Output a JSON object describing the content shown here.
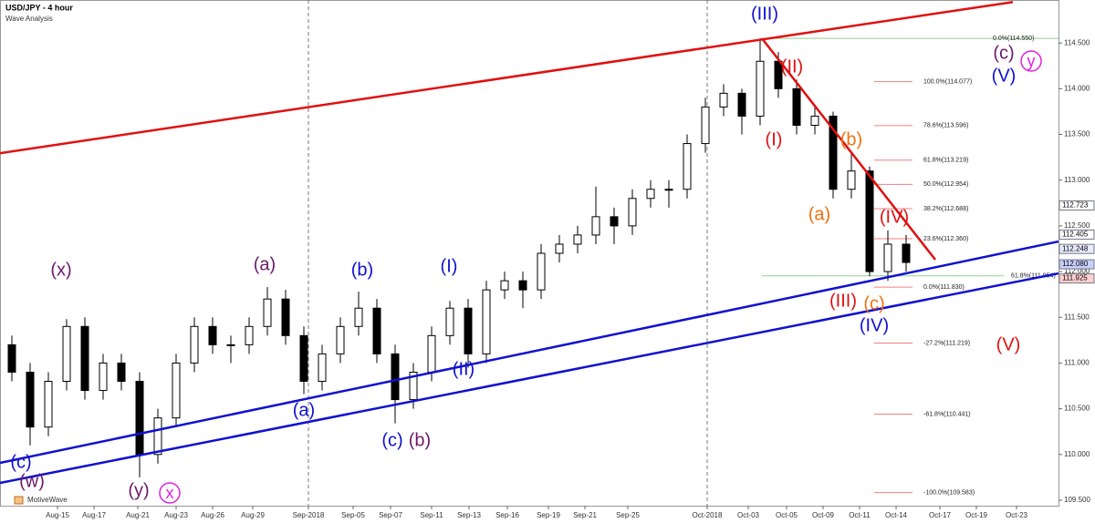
{
  "chart_data": {
    "type": "candlestick",
    "title": "USD/JPY - 4 hour",
    "subtitle": "Wave Analysis",
    "watermark": "MotiveWave",
    "x": [
      -2.5,
      -1.5,
      -0.5,
      0.5,
      1.5,
      2.5,
      3.5,
      4.5,
      5.5,
      6.5,
      7.5,
      8.5,
      9.5,
      10.5,
      11.5,
      12.5,
      13.5,
      14.5,
      15.5,
      16.5,
      17.5,
      18.5,
      19.5,
      20.5,
      21.5,
      22.5,
      23.5,
      24.5,
      25.5,
      26.5,
      27.5,
      28.5,
      29.5,
      30.5,
      31.5,
      32.5,
      33.5,
      34.5,
      35.5,
      36.5,
      37.5,
      38.5,
      39.5,
      40.5,
      41.5,
      42.5,
      43.5,
      44.5,
      45.5,
      46.5
    ],
    "open": [
      111.2,
      110.9,
      110.3,
      110.8,
      111.4,
      110.7,
      111.0,
      110.8,
      110.0,
      110.4,
      111.0,
      111.4,
      111.2,
      111.2,
      111.4,
      111.7,
      111.3,
      110.8,
      111.1,
      111.4,
      111.6,
      111.1,
      110.6,
      110.9,
      111.3,
      111.6,
      111.1,
      111.8,
      111.9,
      111.8,
      112.2,
      112.3,
      112.4,
      112.6,
      112.5,
      112.8,
      112.9,
      112.9,
      113.4,
      113.8,
      113.95,
      113.7,
      114.3,
      114.0,
      113.6,
      113.7,
      112.9,
      113.1,
      112.0,
      112.3
    ],
    "high": [
      111.3,
      111.0,
      110.9,
      111.48,
      111.5,
      111.1,
      111.1,
      110.9,
      110.5,
      111.1,
      111.5,
      111.5,
      111.3,
      111.5,
      111.83,
      111.8,
      111.4,
      111.2,
      111.5,
      111.78,
      111.7,
      111.2,
      111.0,
      111.4,
      111.68,
      111.7,
      111.9,
      112.0,
      112.0,
      112.3,
      112.4,
      112.5,
      112.93,
      112.7,
      112.9,
      113.0,
      113.0,
      113.5,
      113.9,
      114.05,
      114.0,
      114.55,
      114.4,
      114.1,
      113.8,
      113.75,
      113.3,
      113.15,
      112.45,
      112.4
    ],
    "low": [
      110.8,
      110.1,
      110.2,
      110.7,
      110.6,
      110.6,
      110.7,
      109.75,
      109.9,
      110.3,
      110.9,
      111.1,
      111.0,
      111.1,
      111.3,
      111.2,
      110.66,
      110.7,
      111.0,
      111.3,
      111.0,
      110.34,
      110.5,
      110.8,
      111.2,
      110.95,
      111.0,
      111.7,
      111.6,
      111.7,
      112.1,
      112.2,
      112.3,
      112.3,
      112.4,
      112.7,
      112.7,
      112.8,
      113.3,
      113.7,
      113.5,
      113.6,
      113.9,
      113.5,
      113.5,
      112.8,
      112.8,
      111.95,
      111.9,
      112.0
    ],
    "close": [
      110.9,
      110.3,
      110.8,
      111.4,
      110.7,
      111.0,
      110.8,
      110.0,
      110.4,
      111.0,
      111.4,
      111.2,
      111.2,
      111.4,
      111.7,
      111.3,
      110.8,
      111.1,
      111.4,
      111.6,
      111.1,
      110.6,
      110.9,
      111.3,
      111.6,
      111.1,
      111.8,
      111.9,
      111.8,
      112.2,
      112.3,
      112.4,
      112.6,
      112.5,
      112.8,
      112.9,
      112.9,
      113.4,
      113.8,
      113.95,
      113.7,
      114.3,
      114.0,
      113.6,
      113.7,
      112.9,
      113.1,
      112.0,
      112.3,
      112.1
    ],
    "xlim": [
      -3.15,
      54.85
    ],
    "ylim": [
      109.44,
      114.97
    ],
    "xticks": [
      {
        "value": 0,
        "label": "Aug-15"
      },
      {
        "value": 2,
        "label": "Aug-17"
      },
      {
        "value": 4.4,
        "label": "Aug-21"
      },
      {
        "value": 6.5,
        "label": "Aug-23"
      },
      {
        "value": 8.5,
        "label": "Aug-26"
      },
      {
        "value": 10.7,
        "label": "Aug-29"
      },
      {
        "value": 13.75,
        "label": "Sep-2018"
      },
      {
        "value": 16.2,
        "label": "Sep-05"
      },
      {
        "value": 18.25,
        "label": "Sep-07"
      },
      {
        "value": 20.5,
        "label": "Sep-11"
      },
      {
        "value": 22.55,
        "label": "Sep-13"
      },
      {
        "value": 24.65,
        "label": "Sep-16"
      },
      {
        "value": 26.9,
        "label": "Sep-19"
      },
      {
        "value": 28.9,
        "label": "Sep-21"
      },
      {
        "value": 31.25,
        "label": "Sep-25"
      },
      {
        "value": 35.6,
        "label": "Oct-2018"
      },
      {
        "value": 37.85,
        "label": "Oct-03"
      },
      {
        "value": 39.95,
        "label": "Oct-05"
      },
      {
        "value": 41.95,
        "label": "Oct-09"
      },
      {
        "value": 43.95,
        "label": "Oct-11"
      },
      {
        "value": 45.95,
        "label": "Oct-14"
      },
      {
        "value": 48.35,
        "label": "Oct-17"
      },
      {
        "value": 50.35,
        "label": "Oct-19"
      },
      {
        "value": 52.55,
        "label": "Oct-23"
      }
    ],
    "yticks": [
      {
        "value": 114.5,
        "label": "114.500"
      },
      {
        "value": 114,
        "label": "114.000"
      },
      {
        "value": 113.5,
        "label": "113.500"
      },
      {
        "value": 113,
        "label": "113.000"
      },
      {
        "value": 112.5,
        "label": "112.500"
      },
      {
        "value": 112,
        "label": "112.000"
      },
      {
        "value": 111.5,
        "label": "111.500"
      },
      {
        "value": 111,
        "label": "111.000"
      },
      {
        "value": 110.5,
        "label": "110.500"
      },
      {
        "value": 110,
        "label": "110.000"
      },
      {
        "value": 109.5,
        "label": "109.500"
      }
    ],
    "month_lines": [
      13.75,
      35.6
    ],
    "price_markers": [
      {
        "value": 112.723,
        "label": "112.723",
        "color": "#ffffff"
      },
      {
        "value": 112.405,
        "label": "112.405",
        "color": "#ffffff"
      },
      {
        "value": 112.248,
        "label": "112.248",
        "color": "#e8ecff"
      },
      {
        "value": 112.08,
        "label": "112.080",
        "color": "#c8d0ff"
      },
      {
        "value": 111.925,
        "label": "111.925",
        "color": "#ffd0d0"
      }
    ],
    "trendlines": [
      {
        "color": "#e01010",
        "points": [
          [
            -3.15,
            113.295
          ],
          [
            52.35,
            114.948
          ]
        ]
      },
      {
        "color": "#1010d0",
        "points": [
          [
            -3.15,
            109.908
          ],
          [
            54.85,
            112.329
          ]
        ]
      },
      {
        "color": "#1010d0",
        "points": [
          [
            -3.15,
            109.689
          ],
          [
            54.85,
            111.98
          ]
        ]
      },
      {
        "color": "#e01010",
        "points": [
          [
            38.6,
            114.55
          ],
          [
            48.1,
            112.13
          ]
        ]
      }
    ],
    "fib_levels": [
      {
        "label": "0.0%(114.550)",
        "value": 114.55,
        "color": "#8fd18f"
      },
      {
        "label": "100.0%(114.077)",
        "value": 114.077,
        "color": "#f08080"
      },
      {
        "label": "78.6%(113.596)",
        "value": 113.596,
        "color": "#f08080"
      },
      {
        "label": "61.8%(113.219)",
        "value": 113.219,
        "color": "#f08080"
      },
      {
        "label": "50.0%(112.954)",
        "value": 112.954,
        "color": "#f08080"
      },
      {
        "label": "38.2%(112.688)",
        "value": 112.688,
        "color": "#f08080"
      },
      {
        "label": "23.6%(112.360)",
        "value": 112.36,
        "color": "#f08080"
      },
      {
        "label": "0.0%(111.830)",
        "value": 111.83,
        "color": "#f08080"
      },
      {
        "label": "-27.2%(111.219)",
        "value": 111.219,
        "color": "#f08080"
      },
      {
        "label": "-61.8%(110.441)",
        "value": 110.441,
        "color": "#f08080"
      },
      {
        "label": "-100.0%(109.583)",
        "value": 109.583,
        "color": "#f08080"
      },
      {
        "label": "61.8%(111.954)",
        "value": 111.954,
        "color": "#8fd18f"
      }
    ],
    "annotations": [
      {
        "text": "(III)",
        "color": "#1010d0"
      },
      {
        "text": "(II)",
        "color": "#e01010"
      },
      {
        "text": "(I)",
        "color": "#e01010"
      },
      {
        "text": "(b)",
        "color": "#f07010"
      },
      {
        "text": "(a)",
        "color": "#f07010"
      },
      {
        "text": "(IV)",
        "color": "#e01010"
      },
      {
        "text": "(III)",
        "color": "#e01010"
      },
      {
        "text": "(c)",
        "color": "#f07010"
      },
      {
        "text": "(IV)",
        "color": "#1010d0"
      },
      {
        "text": "(V)",
        "color": "#e01010"
      },
      {
        "text": "(c)",
        "color": "#6a1a6a"
      },
      {
        "text": "y",
        "color": "#e020e0"
      },
      {
        "text": "(V)",
        "color": "#1010d0"
      },
      {
        "text": "(a)",
        "color": "#6a1a6a"
      },
      {
        "text": "(b)",
        "color": "#1010d0"
      },
      {
        "text": "(I)",
        "color": "#1010d0"
      },
      {
        "text": "(II)",
        "color": "#1010d0"
      },
      {
        "text": "(a)",
        "color": "#1010d0"
      },
      {
        "text": "(c)",
        "color": "#1010d0"
      },
      {
        "text": "(b)",
        "color": "#6a1a6a"
      },
      {
        "text": "(x)",
        "color": "#6a1a6a"
      },
      {
        "text": "(c)",
        "color": "#1010d0"
      },
      {
        "text": "(w)",
        "color": "#6a1a6a"
      },
      {
        "text": "(y)",
        "color": "#6a1a6a"
      },
      {
        "text": "x",
        "color": "#e020e0"
      }
    ]
  }
}
